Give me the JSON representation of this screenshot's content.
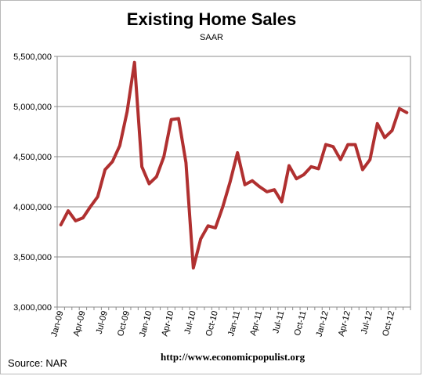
{
  "chart_data": {
    "type": "line",
    "title": "Existing Home Sales",
    "subtitle": "SAAR",
    "source": "Source:  NAR",
    "url": "http://www.economicpopulist.org",
    "ylim": [
      3000000,
      5500000
    ],
    "yticks": [
      "3,000,000",
      "3,500,000",
      "4,000,000",
      "4,500,000",
      "5,000,000",
      "5,500,000"
    ],
    "ytick_values": [
      3000000,
      3500000,
      4000000,
      4500000,
      5000000,
      5500000
    ],
    "xtick_labels": [
      "Jan-09",
      "Apr-09",
      "Jul-09",
      "Oct-09",
      "Jan-10",
      "Apr-10",
      "Jul-10",
      "Oct-10",
      "Jan-11",
      "Apr-11",
      "Jul-11",
      "Oct-11",
      "Jan-12",
      "Apr-12",
      "Jul-12",
      "Oct-12"
    ],
    "grid": true,
    "line_color": "#b03030",
    "series": [
      {
        "x": [
          "Jan-09",
          "Feb-09",
          "Mar-09",
          "Apr-09",
          "May-09",
          "Jun-09",
          "Jul-09",
          "Aug-09",
          "Sep-09",
          "Oct-09",
          "Nov-09",
          "Dec-09",
          "Jan-10",
          "Feb-10",
          "Mar-10",
          "Apr-10",
          "May-10",
          "Jun-10",
          "Jul-10",
          "Aug-10",
          "Sep-10",
          "Oct-10",
          "Nov-10",
          "Dec-10",
          "Jan-11",
          "Feb-11",
          "Mar-11",
          "Apr-11",
          "May-11",
          "Jun-11",
          "Jul-11",
          "Aug-11",
          "Sep-11",
          "Oct-11",
          "Nov-11",
          "Dec-11",
          "Jan-12",
          "Feb-12",
          "Mar-12",
          "Apr-12",
          "May-12",
          "Jun-12",
          "Jul-12",
          "Aug-12",
          "Sep-12",
          "Oct-12",
          "Nov-12",
          "Dec-12"
        ],
        "values": [
          3820000,
          3960000,
          3860000,
          3890000,
          4000000,
          4100000,
          4370000,
          4450000,
          4610000,
          4950000,
          5440000,
          4400000,
          4230000,
          4300000,
          4500000,
          4870000,
          4880000,
          4440000,
          3390000,
          3680000,
          3810000,
          3790000,
          4000000,
          4250000,
          4540000,
          4220000,
          4260000,
          4200000,
          4150000,
          4170000,
          4050000,
          4410000,
          4280000,
          4320000,
          4400000,
          4380000,
          4620000,
          4600000,
          4470000,
          4620000,
          4620000,
          4370000,
          4470000,
          4830000,
          4690000,
          4760000,
          4980000,
          4940000
        ]
      }
    ]
  }
}
